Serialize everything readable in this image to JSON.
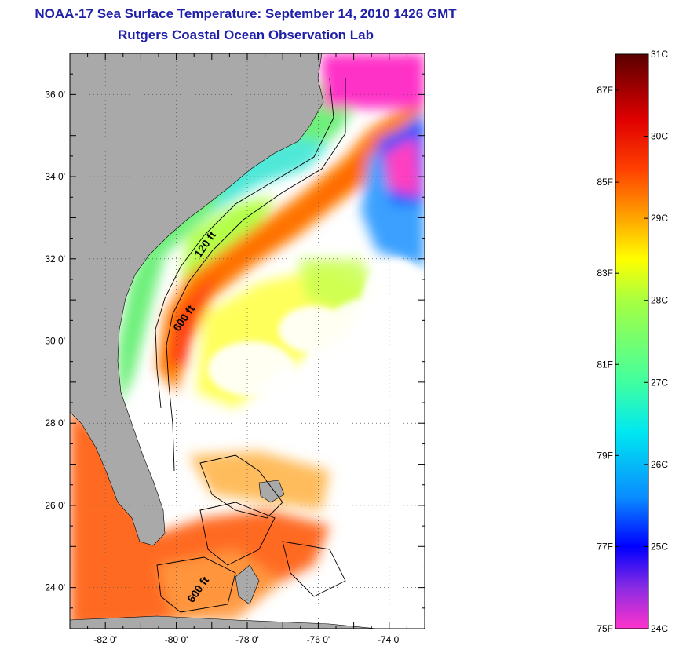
{
  "title": "NOAA-17 Sea Surface Temperature:  September 14, 2010 1426 GMT",
  "subtitle": "Rutgers Coastal Ocean Observation Lab",
  "map": {
    "lon_range": [
      -83,
      -73
    ],
    "lat_range": [
      23,
      37
    ],
    "lon_ticks": [
      {
        "value": -82,
        "label": "-82 0'"
      },
      {
        "value": -80,
        "label": "-80 0'"
      },
      {
        "value": -78,
        "label": "-78 0'"
      },
      {
        "value": -76,
        "label": "-76 0'"
      },
      {
        "value": -74,
        "label": "-74 0'"
      }
    ],
    "lat_ticks": [
      {
        "value": 24,
        "label": "24 0'"
      },
      {
        "value": 26,
        "label": "26 0'"
      },
      {
        "value": 28,
        "label": "28 0'"
      },
      {
        "value": 30,
        "label": "30 0'"
      },
      {
        "value": 32,
        "label": "32 0'"
      },
      {
        "value": 34,
        "label": "34 0'"
      },
      {
        "value": 36,
        "label": "36 0'"
      }
    ],
    "contour_labels": [
      {
        "text": "120 ft",
        "lon": -79.1,
        "lat": 32.3
      },
      {
        "text": "600 ft",
        "lon": -79.7,
        "lat": 30.5
      },
      {
        "text": "600 ft",
        "lon": -79.3,
        "lat": 23.9
      }
    ],
    "colors": {
      "land": "#a9a9a9",
      "ocean_nodata": "#ffffff",
      "frame": "#000000"
    }
  },
  "colorbar": {
    "range_c": [
      24,
      31
    ],
    "celsius_labels": [
      "31C",
      "30C",
      "29C",
      "28C",
      "27C",
      "26C",
      "25C",
      "24C"
    ],
    "fahrenheit_labels": [
      {
        "label": "87F",
        "value_c": 30.56
      },
      {
        "label": "85F",
        "value_c": 29.44
      },
      {
        "label": "83F",
        "value_c": 28.33
      },
      {
        "label": "81F",
        "value_c": 27.22
      },
      {
        "label": "79F",
        "value_c": 26.11
      },
      {
        "label": "77F",
        "value_c": 25.0
      },
      {
        "label": "75F",
        "value_c": 23.89
      }
    ],
    "stops": [
      {
        "value_c": 24.0,
        "color": "#ff33cc"
      },
      {
        "value_c": 24.5,
        "color": "#8a2be2"
      },
      {
        "value_c": 25.0,
        "color": "#0000ff"
      },
      {
        "value_c": 25.6,
        "color": "#0a8cff"
      },
      {
        "value_c": 26.4,
        "color": "#00e8f0"
      },
      {
        "value_c": 27.0,
        "color": "#40ffa0"
      },
      {
        "value_c": 28.0,
        "color": "#a8ff40"
      },
      {
        "value_c": 28.5,
        "color": "#ffff00"
      },
      {
        "value_c": 29.0,
        "color": "#ffa500"
      },
      {
        "value_c": 29.6,
        "color": "#ff4000"
      },
      {
        "value_c": 30.2,
        "color": "#e00000"
      },
      {
        "value_c": 31.0,
        "color": "#5a0000"
      }
    ]
  }
}
